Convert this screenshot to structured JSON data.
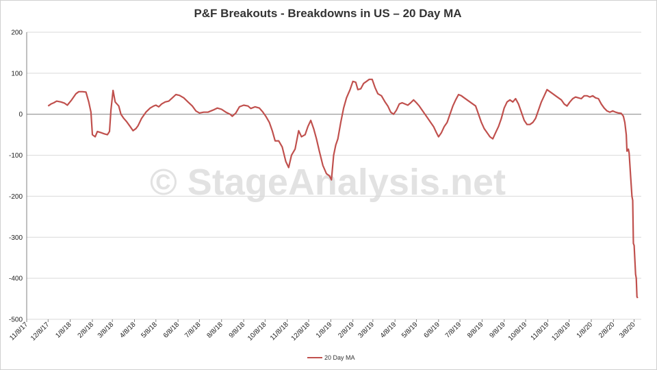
{
  "chart_data": {
    "type": "line",
    "title": "P&F Breakouts - Breakdowns in US – 20 Day MA",
    "watermark": "© StageAnalysis.net",
    "ylim": [
      -500,
      200
    ],
    "yticks": [
      200,
      100,
      0,
      -100,
      -200,
      -300,
      -400,
      -500
    ],
    "x_tick_labels": [
      "11/8/17",
      "12/8/17",
      "1/8/18",
      "2/8/18",
      "3/8/18",
      "4/8/18",
      "5/8/18",
      "6/8/18",
      "7/8/18",
      "8/8/18",
      "9/8/18",
      "10/8/18",
      "11/8/18",
      "12/8/18",
      "1/8/19",
      "2/8/19",
      "3/8/19",
      "4/8/19",
      "5/8/19",
      "6/8/19",
      "7/8/19",
      "8/8/19",
      "9/8/19",
      "10/8/19",
      "11/8/19",
      "12/8/19",
      "1/8/20",
      "2/8/20",
      "3/8/20"
    ],
    "grid": true,
    "legend_position": "bottom",
    "colors": {
      "series": "#c0504d",
      "grid": "#d9d9d9",
      "axis": "#808080"
    },
    "series": [
      {
        "name": "20 Day MA",
        "points": [
          [
            "2017-12-08",
            20
          ],
          [
            "2017-12-12",
            25
          ],
          [
            "2017-12-16",
            28
          ],
          [
            "2017-12-20",
            32
          ],
          [
            "2017-12-26",
            30
          ],
          [
            "2017-12-31",
            27
          ],
          [
            "2018-01-04",
            22
          ],
          [
            "2018-01-10",
            35
          ],
          [
            "2018-01-16",
            50
          ],
          [
            "2018-01-20",
            55
          ],
          [
            "2018-01-25",
            55
          ],
          [
            "2018-01-30",
            54
          ],
          [
            "2018-02-03",
            30
          ],
          [
            "2018-02-06",
            5
          ],
          [
            "2018-02-08",
            -50
          ],
          [
            "2018-02-12",
            -55
          ],
          [
            "2018-02-15",
            -42
          ],
          [
            "2018-02-20",
            -45
          ],
          [
            "2018-02-25",
            -48
          ],
          [
            "2018-03-01",
            -50
          ],
          [
            "2018-03-04",
            -42
          ],
          [
            "2018-03-06",
            10
          ],
          [
            "2018-03-09",
            58
          ],
          [
            "2018-03-12",
            30
          ],
          [
            "2018-03-17",
            20
          ],
          [
            "2018-03-20",
            0
          ],
          [
            "2018-03-24",
            -10
          ],
          [
            "2018-03-28",
            -18
          ],
          [
            "2018-04-02",
            -30
          ],
          [
            "2018-04-06",
            -40
          ],
          [
            "2018-04-10",
            -35
          ],
          [
            "2018-04-13",
            -28
          ],
          [
            "2018-04-18",
            -10
          ],
          [
            "2018-04-24",
            5
          ],
          [
            "2018-04-30",
            15
          ],
          [
            "2018-05-05",
            20
          ],
          [
            "2018-05-08",
            22
          ],
          [
            "2018-05-12",
            18
          ],
          [
            "2018-05-16",
            25
          ],
          [
            "2018-05-21",
            30
          ],
          [
            "2018-05-26",
            32
          ],
          [
            "2018-05-31",
            40
          ],
          [
            "2018-06-05",
            48
          ],
          [
            "2018-06-10",
            46
          ],
          [
            "2018-06-16",
            40
          ],
          [
            "2018-06-22",
            30
          ],
          [
            "2018-06-28",
            20
          ],
          [
            "2018-07-03",
            8
          ],
          [
            "2018-07-08",
            3
          ],
          [
            "2018-07-14",
            5
          ],
          [
            "2018-07-20",
            5
          ],
          [
            "2018-07-27",
            10
          ],
          [
            "2018-08-02",
            15
          ],
          [
            "2018-08-08",
            12
          ],
          [
            "2018-08-14",
            5
          ],
          [
            "2018-08-20",
            0
          ],
          [
            "2018-08-23",
            -5
          ],
          [
            "2018-08-28",
            3
          ],
          [
            "2018-09-02",
            18
          ],
          [
            "2018-09-08",
            22
          ],
          [
            "2018-09-14",
            20
          ],
          [
            "2018-09-18",
            14
          ],
          [
            "2018-09-24",
            18
          ],
          [
            "2018-09-30",
            15
          ],
          [
            "2018-10-05",
            5
          ],
          [
            "2018-10-09",
            -5
          ],
          [
            "2018-10-14",
            -20
          ],
          [
            "2018-10-18",
            -40
          ],
          [
            "2018-10-22",
            -65
          ],
          [
            "2018-10-27",
            -65
          ],
          [
            "2018-11-01",
            -80
          ],
          [
            "2018-11-06",
            -115
          ],
          [
            "2018-11-10",
            -130
          ],
          [
            "2018-11-14",
            -100
          ],
          [
            "2018-11-19",
            -85
          ],
          [
            "2018-11-24",
            -40
          ],
          [
            "2018-11-28",
            -55
          ],
          [
            "2018-12-03",
            -50
          ],
          [
            "2018-12-07",
            -30
          ],
          [
            "2018-12-11",
            -15
          ],
          [
            "2018-12-15",
            -35
          ],
          [
            "2018-12-19",
            -60
          ],
          [
            "2018-12-23",
            -90
          ],
          [
            "2018-12-28",
            -125
          ],
          [
            "2019-01-02",
            -145
          ],
          [
            "2019-01-06",
            -150
          ],
          [
            "2019-01-09",
            -160
          ],
          [
            "2019-01-12",
            -100
          ],
          [
            "2019-01-15",
            -75
          ],
          [
            "2019-01-18",
            -60
          ],
          [
            "2019-01-22",
            -20
          ],
          [
            "2019-01-26",
            15
          ],
          [
            "2019-01-30",
            40
          ],
          [
            "2019-02-04",
            60
          ],
          [
            "2019-02-08",
            80
          ],
          [
            "2019-02-12",
            78
          ],
          [
            "2019-02-15",
            60
          ],
          [
            "2019-02-19",
            62
          ],
          [
            "2019-02-23",
            75
          ],
          [
            "2019-02-27",
            80
          ],
          [
            "2019-03-03",
            85
          ],
          [
            "2019-03-07",
            85
          ],
          [
            "2019-03-11",
            65
          ],
          [
            "2019-03-15",
            50
          ],
          [
            "2019-03-20",
            45
          ],
          [
            "2019-03-25",
            30
          ],
          [
            "2019-03-29",
            20
          ],
          [
            "2019-04-02",
            5
          ],
          [
            "2019-04-06",
            0
          ],
          [
            "2019-04-10",
            10
          ],
          [
            "2019-04-14",
            25
          ],
          [
            "2019-04-18",
            28
          ],
          [
            "2019-04-22",
            25
          ],
          [
            "2019-04-26",
            22
          ],
          [
            "2019-04-30",
            28
          ],
          [
            "2019-05-04",
            35
          ],
          [
            "2019-05-08",
            28
          ],
          [
            "2019-05-12",
            20
          ],
          [
            "2019-05-16",
            10
          ],
          [
            "2019-05-20",
            0
          ],
          [
            "2019-05-24",
            -10
          ],
          [
            "2019-05-28",
            -20
          ],
          [
            "2019-06-01",
            -30
          ],
          [
            "2019-06-05",
            -45
          ],
          [
            "2019-06-08",
            -55
          ],
          [
            "2019-06-12",
            -45
          ],
          [
            "2019-06-16",
            -30
          ],
          [
            "2019-06-20",
            -20
          ],
          [
            "2019-06-24",
            0
          ],
          [
            "2019-06-28",
            20
          ],
          [
            "2019-07-02",
            35
          ],
          [
            "2019-07-06",
            48
          ],
          [
            "2019-07-10",
            45
          ],
          [
            "2019-07-14",
            40
          ],
          [
            "2019-07-18",
            35
          ],
          [
            "2019-07-22",
            30
          ],
          [
            "2019-07-26",
            25
          ],
          [
            "2019-07-30",
            20
          ],
          [
            "2019-08-03",
            0
          ],
          [
            "2019-08-07",
            -20
          ],
          [
            "2019-08-11",
            -35
          ],
          [
            "2019-08-15",
            -45
          ],
          [
            "2019-08-19",
            -55
          ],
          [
            "2019-08-23",
            -60
          ],
          [
            "2019-08-27",
            -45
          ],
          [
            "2019-08-31",
            -30
          ],
          [
            "2019-09-04",
            -10
          ],
          [
            "2019-09-08",
            15
          ],
          [
            "2019-09-12",
            30
          ],
          [
            "2019-09-16",
            35
          ],
          [
            "2019-09-20",
            30
          ],
          [
            "2019-09-24",
            38
          ],
          [
            "2019-09-28",
            25
          ],
          [
            "2019-10-02",
            5
          ],
          [
            "2019-10-06",
            -15
          ],
          [
            "2019-10-10",
            -25
          ],
          [
            "2019-10-14",
            -25
          ],
          [
            "2019-10-18",
            -20
          ],
          [
            "2019-10-22",
            -10
          ],
          [
            "2019-10-26",
            10
          ],
          [
            "2019-10-30",
            30
          ],
          [
            "2019-11-03",
            45
          ],
          [
            "2019-11-07",
            60
          ],
          [
            "2019-11-11",
            55
          ],
          [
            "2019-11-15",
            50
          ],
          [
            "2019-11-19",
            45
          ],
          [
            "2019-11-23",
            40
          ],
          [
            "2019-11-27",
            35
          ],
          [
            "2019-12-01",
            25
          ],
          [
            "2019-12-05",
            20
          ],
          [
            "2019-12-09",
            30
          ],
          [
            "2019-12-13",
            38
          ],
          [
            "2019-12-17",
            42
          ],
          [
            "2019-12-21",
            40
          ],
          [
            "2019-12-25",
            38
          ],
          [
            "2019-12-29",
            45
          ],
          [
            "2020-01-02",
            45
          ],
          [
            "2020-01-06",
            42
          ],
          [
            "2020-01-10",
            45
          ],
          [
            "2020-01-14",
            40
          ],
          [
            "2020-01-18",
            38
          ],
          [
            "2020-01-22",
            25
          ],
          [
            "2020-01-26",
            15
          ],
          [
            "2020-01-30",
            8
          ],
          [
            "2020-02-03",
            5
          ],
          [
            "2020-02-07",
            8
          ],
          [
            "2020-02-11",
            5
          ],
          [
            "2020-02-15",
            3
          ],
          [
            "2020-02-19",
            2
          ],
          [
            "2020-02-22",
            -5
          ],
          [
            "2020-02-24",
            -20
          ],
          [
            "2020-02-26",
            -50
          ],
          [
            "2020-02-27",
            -90
          ],
          [
            "2020-02-29",
            -85
          ],
          [
            "2020-03-01",
            -95
          ],
          [
            "2020-03-03",
            -150
          ],
          [
            "2020-03-05",
            -200
          ],
          [
            "2020-03-06",
            -210
          ],
          [
            "2020-03-07",
            -315
          ],
          [
            "2020-03-08",
            -320
          ],
          [
            "2020-03-10",
            -390
          ],
          [
            "2020-03-11",
            -400
          ],
          [
            "2020-03-12",
            -445
          ],
          [
            "2020-03-13",
            -448
          ]
        ]
      }
    ]
  }
}
